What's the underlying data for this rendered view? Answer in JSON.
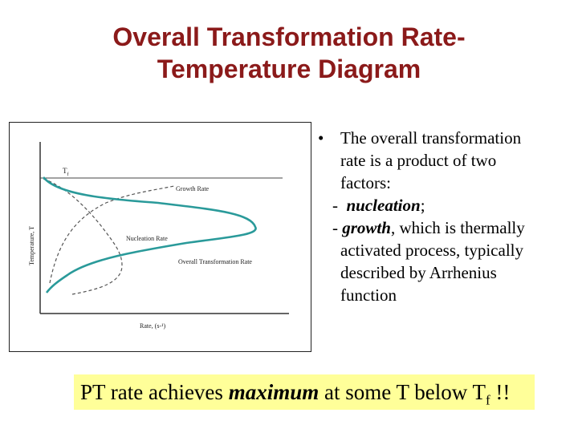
{
  "slide": {
    "title_line1": "Overall Transformation Rate-",
    "title_line2": "Temperature Diagram"
  },
  "figure": {
    "tf_label": "T",
    "tf_sub": "f",
    "growth_rate_label": "Growth Rate",
    "nucleation_rate_label": "Nucleation Rate",
    "overall_rate_label": "Overall Transformation Rate",
    "y_axis_label": "Temperature, T",
    "x_axis_label": "Rate, (s-¹)",
    "colors": {
      "overall_curve": "#2a9a9a",
      "dashed_curves": "#555555",
      "axes": "#333333"
    }
  },
  "bullets": {
    "bullet_char": "•",
    "intro_line1": "The overall transformation",
    "intro_line2": "rate is a product of two",
    "intro_line3": "factors:",
    "item1_prefix": "-",
    "item1_term": "nucleation",
    "item1_suffix": ";",
    "item2_prefix": "-",
    "item2_term": "growth",
    "item2_suffix": ", which is thermally",
    "item2_line2": "activated process,  typically",
    "item2_line3": "described by Arrhenius",
    "item2_line4": "function"
  },
  "callout": {
    "text_before": "PT rate achieves ",
    "emphasis": "maximum",
    "text_after": " at some T below T",
    "sub": "f",
    "ending": " !!",
    "background": "#ffff99"
  }
}
